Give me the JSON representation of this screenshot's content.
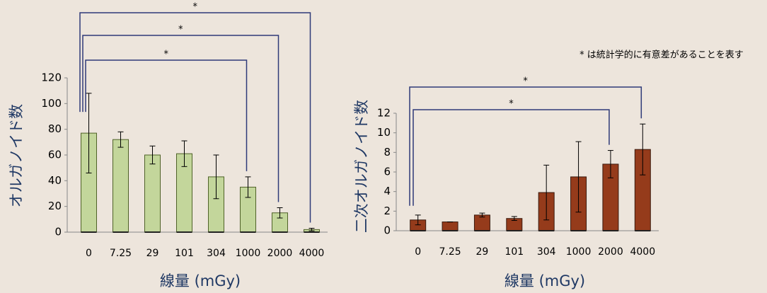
{
  "note": "* は統計学的に有意差があることを表す",
  "chart_data": [
    {
      "type": "bar",
      "xlabel": "線量 (mGy)",
      "ylabel": "オルガノイド数",
      "categories": [
        "0",
        "7.25",
        "29",
        "101",
        "304",
        "1000",
        "2000",
        "4000"
      ],
      "values": [
        77,
        72,
        60,
        61,
        43,
        35,
        15,
        2
      ],
      "errors": [
        31,
        6,
        7,
        10,
        17,
        8,
        4,
        1
      ],
      "color": "#c3d69b",
      "edge_color": "#4f6228",
      "ylim": [
        0,
        120
      ],
      "yticks": [
        0,
        20,
        40,
        60,
        80,
        100,
        120
      ],
      "brackets": [
        {
          "from": "0",
          "to": "4000",
          "label": "*"
        },
        {
          "from": "0",
          "to": "2000",
          "label": "*"
        },
        {
          "from": "0",
          "to": "1000",
          "label": "*"
        }
      ]
    },
    {
      "type": "bar",
      "xlabel": "線量 (mGy)",
      "ylabel": "二次オルガノイド数",
      "categories": [
        "0",
        "7.25",
        "29",
        "101",
        "304",
        "1000",
        "2000",
        "4000"
      ],
      "values": [
        1.1,
        0.9,
        1.6,
        1.25,
        3.9,
        5.5,
        6.8,
        8.3
      ],
      "errors": [
        0.5,
        0,
        0.2,
        0.2,
        2.8,
        3.6,
        1.4,
        2.6
      ],
      "color": "#953b1b",
      "edge_color": "#3a1a0e",
      "ylim": [
        0,
        12
      ],
      "yticks": [
        0,
        2,
        4,
        6,
        8,
        10,
        12
      ],
      "brackets": [
        {
          "from": "0",
          "to": "4000",
          "label": "*"
        },
        {
          "from": "0",
          "to": "2000",
          "label": "*"
        }
      ]
    }
  ]
}
